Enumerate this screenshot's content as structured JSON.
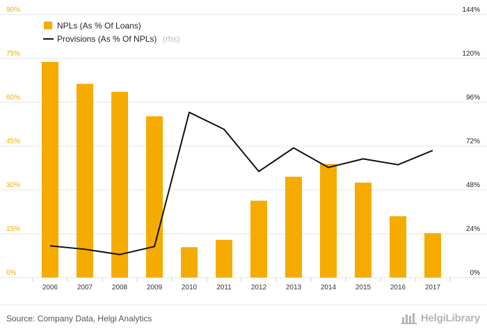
{
  "chart_data": {
    "type": "bar+line",
    "categories": [
      "2006",
      "2007",
      "2008",
      "2009",
      "2010",
      "2011",
      "2012",
      "2013",
      "2014",
      "2015",
      "2016",
      "2017"
    ],
    "series": [
      {
        "name": "NPLs (As % Of Loans)",
        "type": "bar",
        "axis": "left",
        "color": "#f5ab00",
        "values": [
          73.8,
          66.3,
          63.6,
          55.2,
          10.4,
          12.9,
          26.3,
          34.5,
          38.9,
          32.5,
          21.0,
          15.2
        ]
      },
      {
        "name": "Provisions (As % Of NPLs)",
        "name_suffix": "(rhs)",
        "type": "line",
        "axis": "right",
        "color": "#111111",
        "values": [
          17.4,
          15.5,
          12.6,
          17.0,
          90.5,
          81.2,
          58.1,
          71.0,
          60.3,
          65.0,
          61.8,
          69.6
        ]
      }
    ],
    "y_left": {
      "min": 0,
      "max": 90,
      "ticks": [
        "0%",
        "15%",
        "30%",
        "45%",
        "60%",
        "75%",
        "90%"
      ],
      "color": "#f5ab00"
    },
    "y_right": {
      "min": 0,
      "max": 144,
      "ticks": [
        "0%",
        "24%",
        "48%",
        "72%",
        "96%",
        "120%",
        "144%"
      ]
    },
    "grid": true,
    "legend_position": "top-left"
  },
  "footer": {
    "source": "Source: Company Data, Helgi Analytics",
    "brand": "HelgiLibrary"
  }
}
